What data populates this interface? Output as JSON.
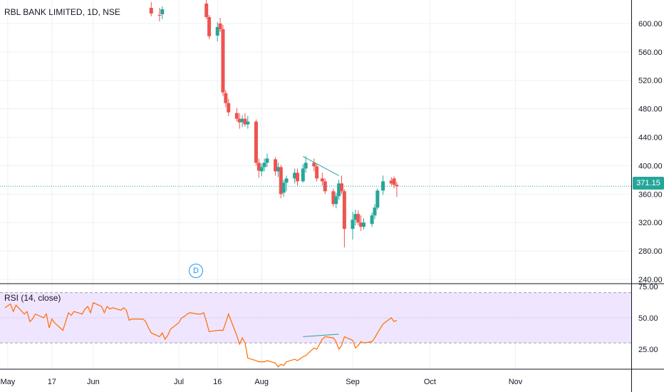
{
  "title": "RBL BANK LIMITED, 1D, NSE",
  "rsi_title": "RSI (14, close)",
  "event_badge": "D",
  "last_price_label": "371.15",
  "colors": {
    "up": "#26a69a",
    "down": "#ef5350",
    "rsi_line": "#ff6d00",
    "rsi_band": "#ede1ff",
    "grid": "#eef0f3",
    "pane_border": "#131722",
    "last_price_line": "#26a69a",
    "trendline": "#26a69a"
  },
  "chart_data": [
    {
      "type": "candlestick",
      "title": "RBL BANK LIMITED, 1D, NSE",
      "y_axis_ticks": [
        "240.00",
        "280.00",
        "320.00",
        "360.00",
        "400.00",
        "440.00",
        "480.00",
        "520.00",
        "560.00",
        "600.00"
      ],
      "ylim": [
        236,
        618
      ],
      "x_axis_ticks": [
        "May",
        "17",
        "Jun",
        "Jul",
        "16",
        "Aug",
        "Sep",
        "Oct",
        "Nov"
      ],
      "last_price": 371.15,
      "grid": true,
      "candles": [
        {
          "t": "Jun 22",
          "o": 622,
          "h": 630,
          "l": 610,
          "c": 614
        },
        {
          "t": "Jun 25",
          "o": 612,
          "h": 622,
          "l": 603,
          "c": 611
        },
        {
          "t": "Jun 26",
          "o": 613,
          "h": 624,
          "l": 606,
          "c": 620
        },
        {
          "t": "Jul 12",
          "o": 628,
          "h": 640,
          "l": 606,
          "c": 609
        },
        {
          "t": "Jul 13",
          "o": 609,
          "h": 612,
          "l": 578,
          "c": 582
        },
        {
          "t": "Jul 16",
          "o": 583,
          "h": 602,
          "l": 575,
          "c": 595
        },
        {
          "t": "Jul 17",
          "o": 600,
          "h": 608,
          "l": 588,
          "c": 592
        },
        {
          "t": "Jul 18",
          "o": 592,
          "h": 598,
          "l": 498,
          "c": 503
        },
        {
          "t": "Jul 19",
          "o": 502,
          "h": 506,
          "l": 482,
          "c": 488
        },
        {
          "t": "Jul 20",
          "o": 488,
          "h": 494,
          "l": 470,
          "c": 475
        },
        {
          "t": "Jul 23",
          "o": 474,
          "h": 481,
          "l": 462,
          "c": 466
        },
        {
          "t": "Jul 24",
          "o": 466,
          "h": 474,
          "l": 452,
          "c": 461
        },
        {
          "t": "Jul 25",
          "o": 461,
          "h": 471,
          "l": 454,
          "c": 466
        },
        {
          "t": "Jul 26",
          "o": 466,
          "h": 474,
          "l": 455,
          "c": 458
        },
        {
          "t": "Jul 27",
          "o": 458,
          "h": 470,
          "l": 452,
          "c": 462
        },
        {
          "t": "Jul 30",
          "o": 462,
          "h": 465,
          "l": 400,
          "c": 404
        },
        {
          "t": "Jul 31",
          "o": 404,
          "h": 410,
          "l": 383,
          "c": 393
        },
        {
          "t": "Aug 1",
          "o": 392,
          "h": 403,
          "l": 385,
          "c": 398
        },
        {
          "t": "Aug 2",
          "o": 398,
          "h": 410,
          "l": 392,
          "c": 404
        },
        {
          "t": "Aug 3",
          "o": 404,
          "h": 417,
          "l": 398,
          "c": 410
        },
        {
          "t": "Aug 6",
          "o": 409,
          "h": 412,
          "l": 386,
          "c": 392
        },
        {
          "t": "Aug 7",
          "o": 392,
          "h": 404,
          "l": 384,
          "c": 398
        },
        {
          "t": "Aug 8",
          "o": 398,
          "h": 401,
          "l": 354,
          "c": 360
        },
        {
          "t": "Aug 9",
          "o": 362,
          "h": 380,
          "l": 356,
          "c": 376
        },
        {
          "t": "Aug 10",
          "o": 376,
          "h": 386,
          "l": 364,
          "c": 382
        },
        {
          "t": "Aug 13",
          "o": 382,
          "h": 396,
          "l": 375,
          "c": 390
        },
        {
          "t": "Aug 14",
          "o": 390,
          "h": 396,
          "l": 372,
          "c": 378
        },
        {
          "t": "Aug 16",
          "o": 378,
          "h": 402,
          "l": 376,
          "c": 396
        },
        {
          "t": "Aug 17",
          "o": 396,
          "h": 413,
          "l": 390,
          "c": 404
        },
        {
          "t": "Aug 20",
          "o": 404,
          "h": 410,
          "l": 392,
          "c": 399
        },
        {
          "t": "Aug 21",
          "o": 399,
          "h": 402,
          "l": 378,
          "c": 382
        },
        {
          "t": "Aug 23",
          "o": 382,
          "h": 390,
          "l": 372,
          "c": 378
        },
        {
          "t": "Aug 24",
          "o": 378,
          "h": 382,
          "l": 360,
          "c": 364
        },
        {
          "t": "Aug 27",
          "o": 364,
          "h": 368,
          "l": 342,
          "c": 346
        },
        {
          "t": "Aug 28",
          "o": 346,
          "h": 362,
          "l": 340,
          "c": 357
        },
        {
          "t": "Aug 29",
          "o": 357,
          "h": 380,
          "l": 352,
          "c": 375
        },
        {
          "t": "Aug 30",
          "o": 375,
          "h": 386,
          "l": 360,
          "c": 364
        },
        {
          "t": "Aug 31",
          "o": 364,
          "h": 367,
          "l": 285,
          "c": 311
        },
        {
          "t": "Sep 3",
          "o": 311,
          "h": 335,
          "l": 296,
          "c": 324
        },
        {
          "t": "Sep 4",
          "o": 324,
          "h": 338,
          "l": 316,
          "c": 332
        },
        {
          "t": "Sep 5",
          "o": 332,
          "h": 337,
          "l": 316,
          "c": 320
        },
        {
          "t": "Sep 6",
          "o": 320,
          "h": 330,
          "l": 308,
          "c": 314
        },
        {
          "t": "Sep 7",
          "o": 314,
          "h": 326,
          "l": 310,
          "c": 320
        },
        {
          "t": "Sep 10",
          "o": 318,
          "h": 334,
          "l": 314,
          "c": 330
        },
        {
          "t": "Sep 11",
          "o": 330,
          "h": 346,
          "l": 325,
          "c": 341
        },
        {
          "t": "Sep 12",
          "o": 341,
          "h": 368,
          "l": 338,
          "c": 365
        },
        {
          "t": "Sep 14",
          "o": 365,
          "h": 386,
          "l": 359,
          "c": 378
        },
        {
          "t": "Sep 17",
          "o": 379,
          "h": 384,
          "l": 372,
          "c": 375
        },
        {
          "t": "Sep 18",
          "o": 382,
          "h": 385,
          "l": 368,
          "c": 373
        },
        {
          "t": "Sep 19",
          "o": 373,
          "h": 377,
          "l": 356,
          "c": 371.15
        }
      ],
      "trendline": [
        {
          "t": "Aug 16",
          "v": 413
        },
        {
          "t": "Aug 29",
          "v": 386
        }
      ]
    },
    {
      "type": "line",
      "title": "RSI (14, close)",
      "y_axis_ticks": [
        "25.00",
        "50.00",
        "75.00"
      ],
      "ylim": [
        8,
        76
      ],
      "band": [
        30,
        70
      ],
      "series": [
        {
          "name": "RSI (14, close)",
          "points": [
            {
              "t": "Apr 30",
              "v": 58
            },
            {
              "t": "May 2",
              "v": 61
            },
            {
              "t": "May 3",
              "v": 55
            },
            {
              "t": "May 4",
              "v": 60
            },
            {
              "t": "May 7",
              "v": 53
            },
            {
              "t": "May 8",
              "v": 55
            },
            {
              "t": "May 9",
              "v": 47
            },
            {
              "t": "May 10",
              "v": 49
            },
            {
              "t": "May 11",
              "v": 53
            },
            {
              "t": "May 14",
              "v": 50
            },
            {
              "t": "May 15",
              "v": 53
            },
            {
              "t": "May 16",
              "v": 42
            },
            {
              "t": "May 17",
              "v": 49
            },
            {
              "t": "May 18",
              "v": 46
            },
            {
              "t": "May 21",
              "v": 40
            },
            {
              "t": "May 22",
              "v": 47
            },
            {
              "t": "May 23",
              "v": 54
            },
            {
              "t": "May 24",
              "v": 52
            },
            {
              "t": "May 25",
              "v": 55
            },
            {
              "t": "May 28",
              "v": 53
            },
            {
              "t": "May 29",
              "v": 57
            },
            {
              "t": "May 30",
              "v": 59
            },
            {
              "t": "May 31",
              "v": 54
            },
            {
              "t": "Jun 1",
              "v": 62
            },
            {
              "t": "Jun 4",
              "v": 59
            },
            {
              "t": "Jun 5",
              "v": 54
            },
            {
              "t": "Jun 6",
              "v": 59
            },
            {
              "t": "Jun 7",
              "v": 57
            },
            {
              "t": "Jun 8",
              "v": 58
            },
            {
              "t": "Jun 11",
              "v": 56
            },
            {
              "t": "Jun 12",
              "v": 58
            },
            {
              "t": "Jun 13",
              "v": 56
            },
            {
              "t": "Jun 14",
              "v": 48
            },
            {
              "t": "Jun 15",
              "v": 49
            },
            {
              "t": "Jun 18",
              "v": 49
            },
            {
              "t": "Jun 19",
              "v": 49
            },
            {
              "t": "Jun 20",
              "v": 47
            },
            {
              "t": "Jun 21",
              "v": 42
            },
            {
              "t": "Jun 22",
              "v": 38
            },
            {
              "t": "Jun 25",
              "v": 35
            },
            {
              "t": "Jun 26",
              "v": 38
            },
            {
              "t": "Jun 27",
              "v": 33
            },
            {
              "t": "Jun 28",
              "v": 36
            },
            {
              "t": "Jun 29",
              "v": 41
            },
            {
              "t": "Jul 2",
              "v": 46
            },
            {
              "t": "Jul 3",
              "v": 50
            },
            {
              "t": "Jul 4",
              "v": 51
            },
            {
              "t": "Jul 5",
              "v": 53
            },
            {
              "t": "Jul 6",
              "v": 54
            },
            {
              "t": "Jul 9",
              "v": 53
            },
            {
              "t": "Jul 10",
              "v": 53
            },
            {
              "t": "Jul 11",
              "v": 54
            },
            {
              "t": "Jul 12",
              "v": 47
            },
            {
              "t": "Jul 13",
              "v": 39
            },
            {
              "t": "Jul 16",
              "v": 40
            },
            {
              "t": "Jul 17",
              "v": 40
            },
            {
              "t": "Jul 18",
              "v": 40
            },
            {
              "t": "Jul 19",
              "v": 46
            },
            {
              "t": "Jul 20",
              "v": 53
            },
            {
              "t": "Jul 23",
              "v": 36
            },
            {
              "t": "Jul 24",
              "v": 29
            },
            {
              "t": "Jul 25",
              "v": 34
            },
            {
              "t": "Jul 26",
              "v": 30
            },
            {
              "t": "Jul 27",
              "v": 18
            },
            {
              "t": "Jul 30",
              "v": 16
            },
            {
              "t": "Jul 31",
              "v": 15
            },
            {
              "t": "Aug 1",
              "v": 15
            },
            {
              "t": "Aug 2",
              "v": 15
            },
            {
              "t": "Aug 3",
              "v": 16
            },
            {
              "t": "Aug 6",
              "v": 14
            },
            {
              "t": "Aug 7",
              "v": 11
            },
            {
              "t": "Aug 8",
              "v": 13
            },
            {
              "t": "Aug 9",
              "v": 12
            },
            {
              "t": "Aug 10",
              "v": 15
            },
            {
              "t": "Aug 13",
              "v": 17
            },
            {
              "t": "Aug 14",
              "v": 16
            },
            {
              "t": "Aug 16",
              "v": 19
            },
            {
              "t": "Aug 17",
              "v": 20
            },
            {
              "t": "Aug 20",
              "v": 26
            },
            {
              "t": "Aug 21",
              "v": 25
            },
            {
              "t": "Aug 23",
              "v": 33
            },
            {
              "t": "Aug 24",
              "v": 35
            },
            {
              "t": "Aug 27",
              "v": 34
            },
            {
              "t": "Aug 28",
              "v": 31
            },
            {
              "t": "Aug 29",
              "v": 25
            },
            {
              "t": "Aug 30",
              "v": 28
            },
            {
              "t": "Aug 31",
              "v": 35
            },
            {
              "t": "Sep 3",
              "v": 32
            },
            {
              "t": "Sep 4",
              "v": 26
            },
            {
              "t": "Sep 5",
              "v": 28
            },
            {
              "t": "Sep 6",
              "v": 31
            },
            {
              "t": "Sep 7",
              "v": 30
            },
            {
              "t": "Sep 10",
              "v": 31
            },
            {
              "t": "Sep 11",
              "v": 34
            },
            {
              "t": "Sep 12",
              "v": 38
            },
            {
              "t": "Sep 14",
              "v": 45
            },
            {
              "t": "Sep 17",
              "v": 50
            },
            {
              "t": "Sep 18",
              "v": 47
            },
            {
              "t": "Sep 19",
              "v": 48
            }
          ]
        }
      ],
      "trendline": [
        {
          "t": "Aug 16",
          "v": 35
        },
        {
          "t": "Aug 29",
          "v": 37
        }
      ]
    }
  ]
}
